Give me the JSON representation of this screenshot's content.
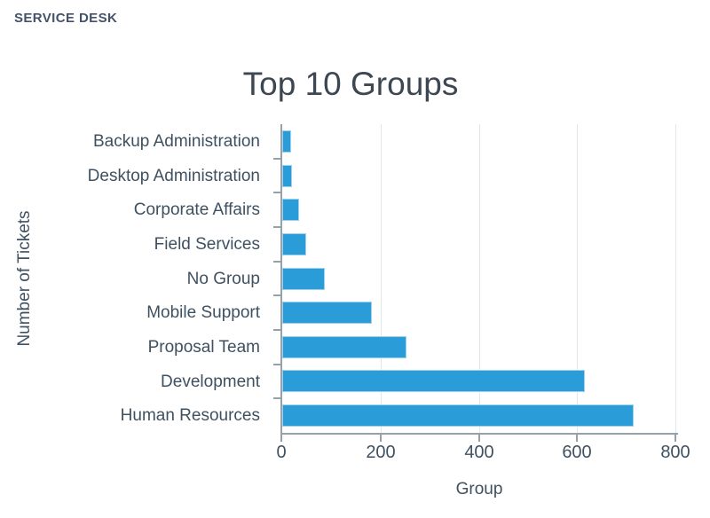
{
  "header": {
    "title": "SERVICE DESK"
  },
  "colors": {
    "bar": "#2a9cd7",
    "bar_edge": "#9fd1ec",
    "axis": "#97a1aa",
    "grid": "#e3e7ea",
    "text": "#3f5161",
    "title": "#3d4752",
    "header_text": "#44536a",
    "background": "#ffffff"
  },
  "chart_data": {
    "type": "bar",
    "orientation": "horizontal",
    "title": "Top 10 Groups",
    "xlabel": "Group",
    "ylabel": "Number of Tickets",
    "categories": [
      "Backup Administration",
      "Desktop Administration",
      "Corporate Affairs",
      "Field Services",
      "No Group",
      "Mobile Support",
      "Proposal Team",
      "Development",
      "Human Resources"
    ],
    "values": [
      18,
      20,
      34,
      49,
      87,
      182,
      252,
      615,
      716
    ],
    "xlim": [
      0,
      800
    ],
    "x_ticks": [
      0,
      200,
      400,
      600,
      800
    ],
    "grid": "vertical-only",
    "legend": "none"
  }
}
